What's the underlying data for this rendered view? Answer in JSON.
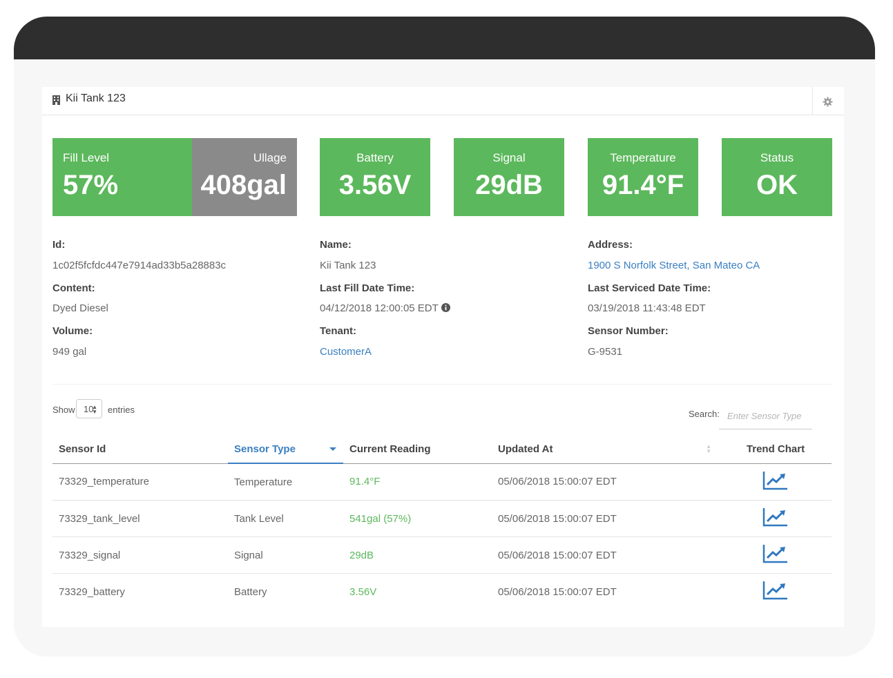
{
  "panel": {
    "title": "Kii Tank 123"
  },
  "tiles": {
    "fill_level": {
      "label": "Fill Level",
      "value": "57%"
    },
    "ullage": {
      "label": "Ullage",
      "value": "408gal"
    },
    "battery": {
      "label": "Battery",
      "value": "3.56V"
    },
    "signal": {
      "label": "Signal",
      "value": "29dB"
    },
    "temperature": {
      "label": "Temperature",
      "value": "91.4°F"
    },
    "status": {
      "label": "Status",
      "value": "OK"
    }
  },
  "colors": {
    "tile_green": "#5cb85c",
    "tile_gray": "#8a8a8a",
    "link_blue": "#3a7fc1",
    "header_dark": "#2e2e2e"
  },
  "details": {
    "id_label": "Id:",
    "id": "1c02f5fcfdc447e7914ad33b5a28883c",
    "content_label": "Content:",
    "content": "Dyed Diesel",
    "volume_label": "Volume:",
    "volume": "949 gal",
    "name_label": "Name:",
    "name": "Kii Tank 123",
    "last_fill_label": "Last Fill Date Time:",
    "last_fill": "04/12/2018 12:00:05 EDT",
    "tenant_label": "Tenant:",
    "tenant": "CustomerA",
    "address_label": "Address:",
    "address": "1900 S Norfolk Street, San Mateo CA",
    "last_serviced_label": "Last Serviced Date Time:",
    "last_serviced": "03/19/2018 11:43:48 EDT",
    "sensor_number_label": "Sensor Number:",
    "sensor_number": "G-9531"
  },
  "table_controls": {
    "show_label": "Show",
    "page_size": "10",
    "entries_label": "entries",
    "search_label": "Search:",
    "search_placeholder": "Enter Sensor Type"
  },
  "table": {
    "headers": [
      "Sensor Id",
      "Sensor Type",
      "Current Reading",
      "Updated At",
      "Trend Chart"
    ],
    "rows": [
      {
        "sensor_id": "73329_temperature",
        "sensor_type": "Temperature",
        "reading": "91.4°F",
        "updated_at": "05/06/2018 15:00:07 EDT"
      },
      {
        "sensor_id": "73329_tank_level",
        "sensor_type": "Tank Level",
        "reading": "541gal (57%)",
        "updated_at": "05/06/2018 15:00:07 EDT"
      },
      {
        "sensor_id": "73329_signal",
        "sensor_type": "Signal",
        "reading": "29dB",
        "updated_at": "05/06/2018 15:00:07 EDT"
      },
      {
        "sensor_id": "73329_battery",
        "sensor_type": "Battery",
        "reading": "3.56V",
        "updated_at": "05/06/2018 15:00:07 EDT"
      }
    ]
  }
}
